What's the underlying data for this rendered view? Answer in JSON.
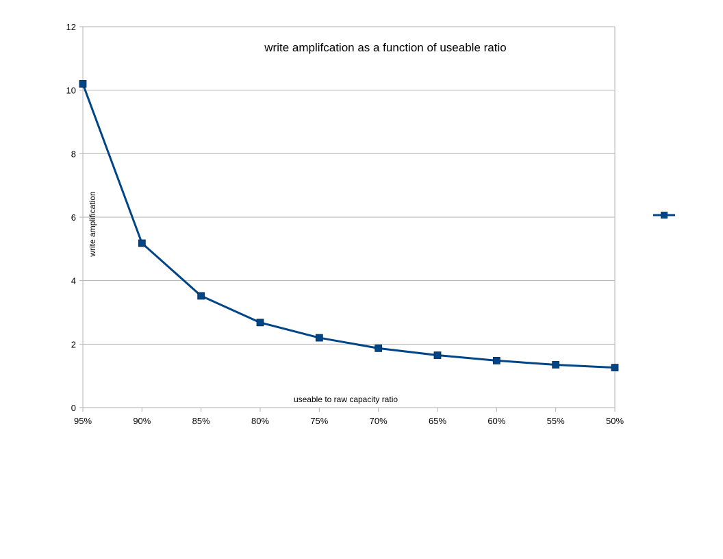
{
  "chart_data": {
    "type": "line",
    "title": "write amplifcation as a function of useable ratio",
    "xlabel": "useable to raw capacity ratio",
    "ylabel": "write amplification",
    "categories": [
      "95%",
      "90%",
      "85%",
      "80%",
      "75%",
      "70%",
      "65%",
      "60%",
      "55%",
      "50%"
    ],
    "series": [
      {
        "color": "#004586",
        "marker": "square",
        "values": [
          10.2,
          5.18,
          3.52,
          2.68,
          2.2,
          1.87,
          1.65,
          1.48,
          1.35,
          1.26
        ]
      }
    ],
    "ylim": [
      0,
      12
    ],
    "yticks": [
      "0",
      "2",
      "4",
      "6",
      "8",
      "10",
      "12"
    ],
    "grid": "horizontal",
    "legend_placement": "right"
  },
  "colors": {
    "series": "#004586",
    "grid": "#b3b3b3",
    "axis": "#b3b3b3"
  }
}
